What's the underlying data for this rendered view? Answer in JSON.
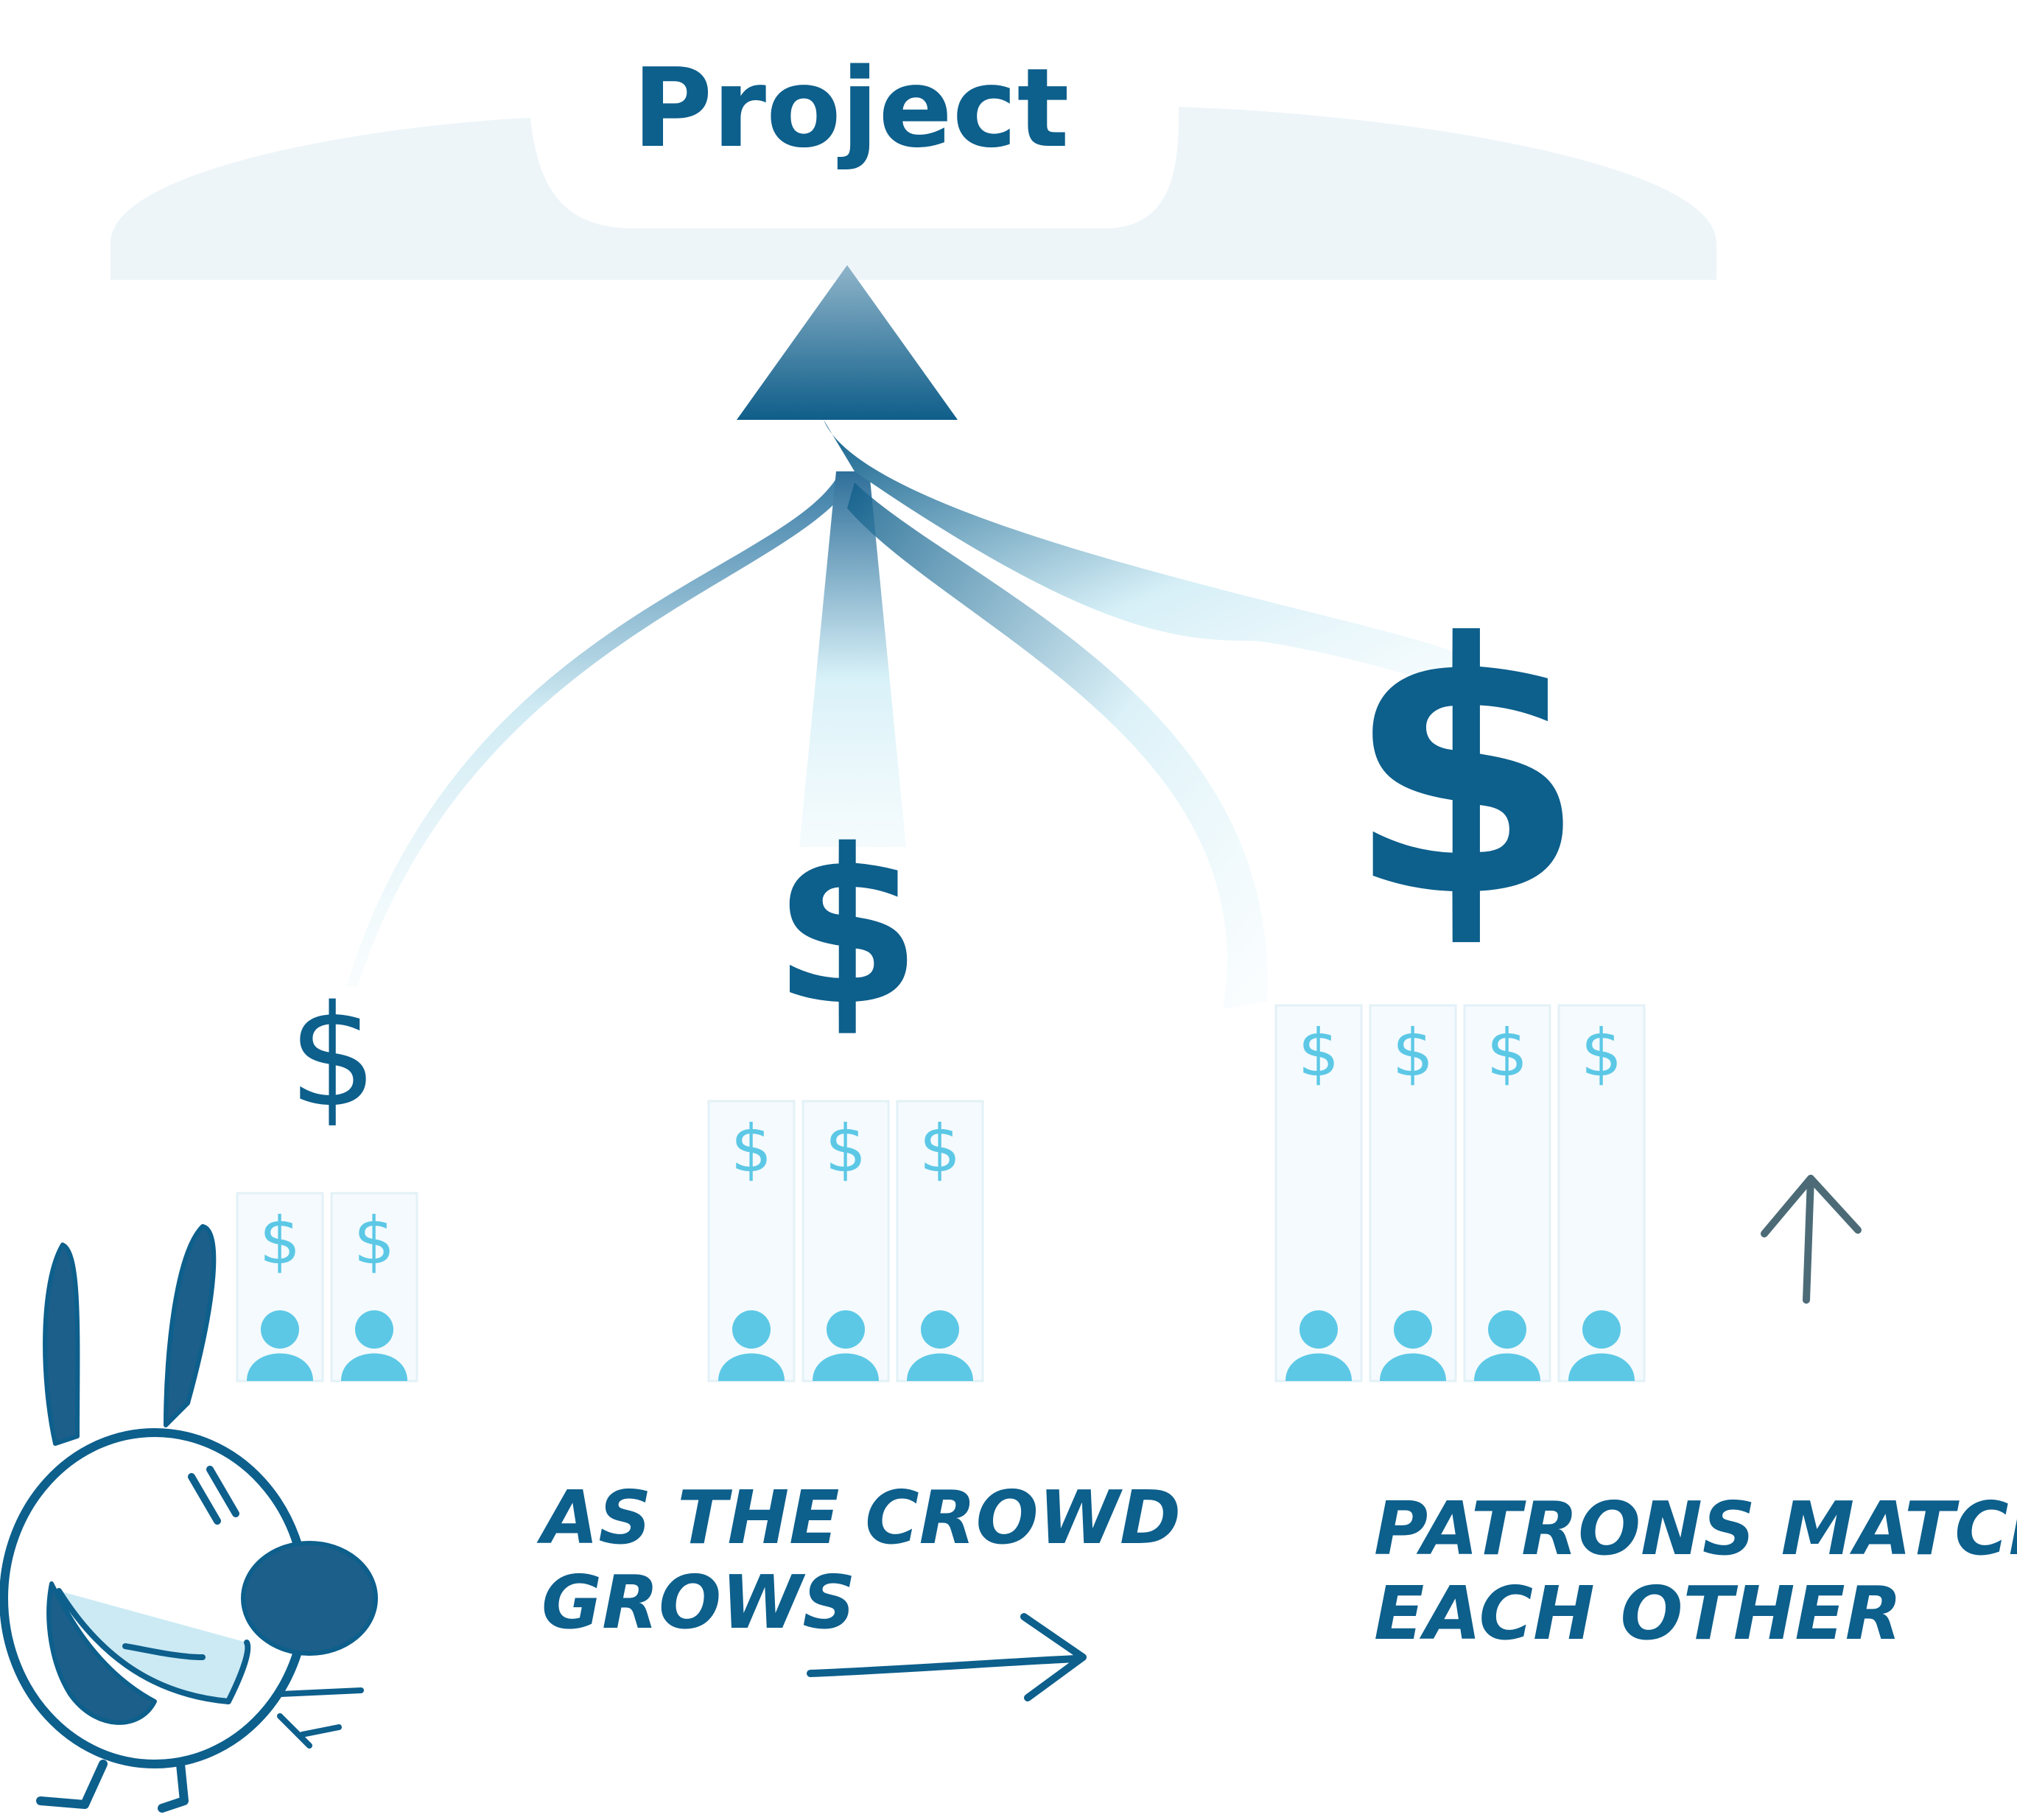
{
  "title": "Project",
  "groups": [
    {
      "name": "small-crowd",
      "patrons": 2,
      "matched_symbol": "$"
    },
    {
      "name": "medium-crowd",
      "patrons": 3,
      "matched_symbol": "$"
    },
    {
      "name": "large-crowd",
      "patrons": 4,
      "matched_symbol": "$"
    }
  ],
  "contribution_symbol": "$",
  "captions": {
    "crowd_line1": "AS THE CROWD",
    "crowd_line2": "GROWS",
    "patrons_line1": "PATRONS MATCH",
    "patrons_line2": "EACH OTHER"
  },
  "icons": [
    "person-icon",
    "dollar-icon",
    "arrow-up-icon",
    "arrow-right-icon",
    "bunny-mascot"
  ],
  "colors": {
    "dark_blue": "#0d5f8c",
    "light_blue": "#5cc8e6",
    "pale_blue": "#eef5f9",
    "arrow_grey": "#4c6b77"
  }
}
